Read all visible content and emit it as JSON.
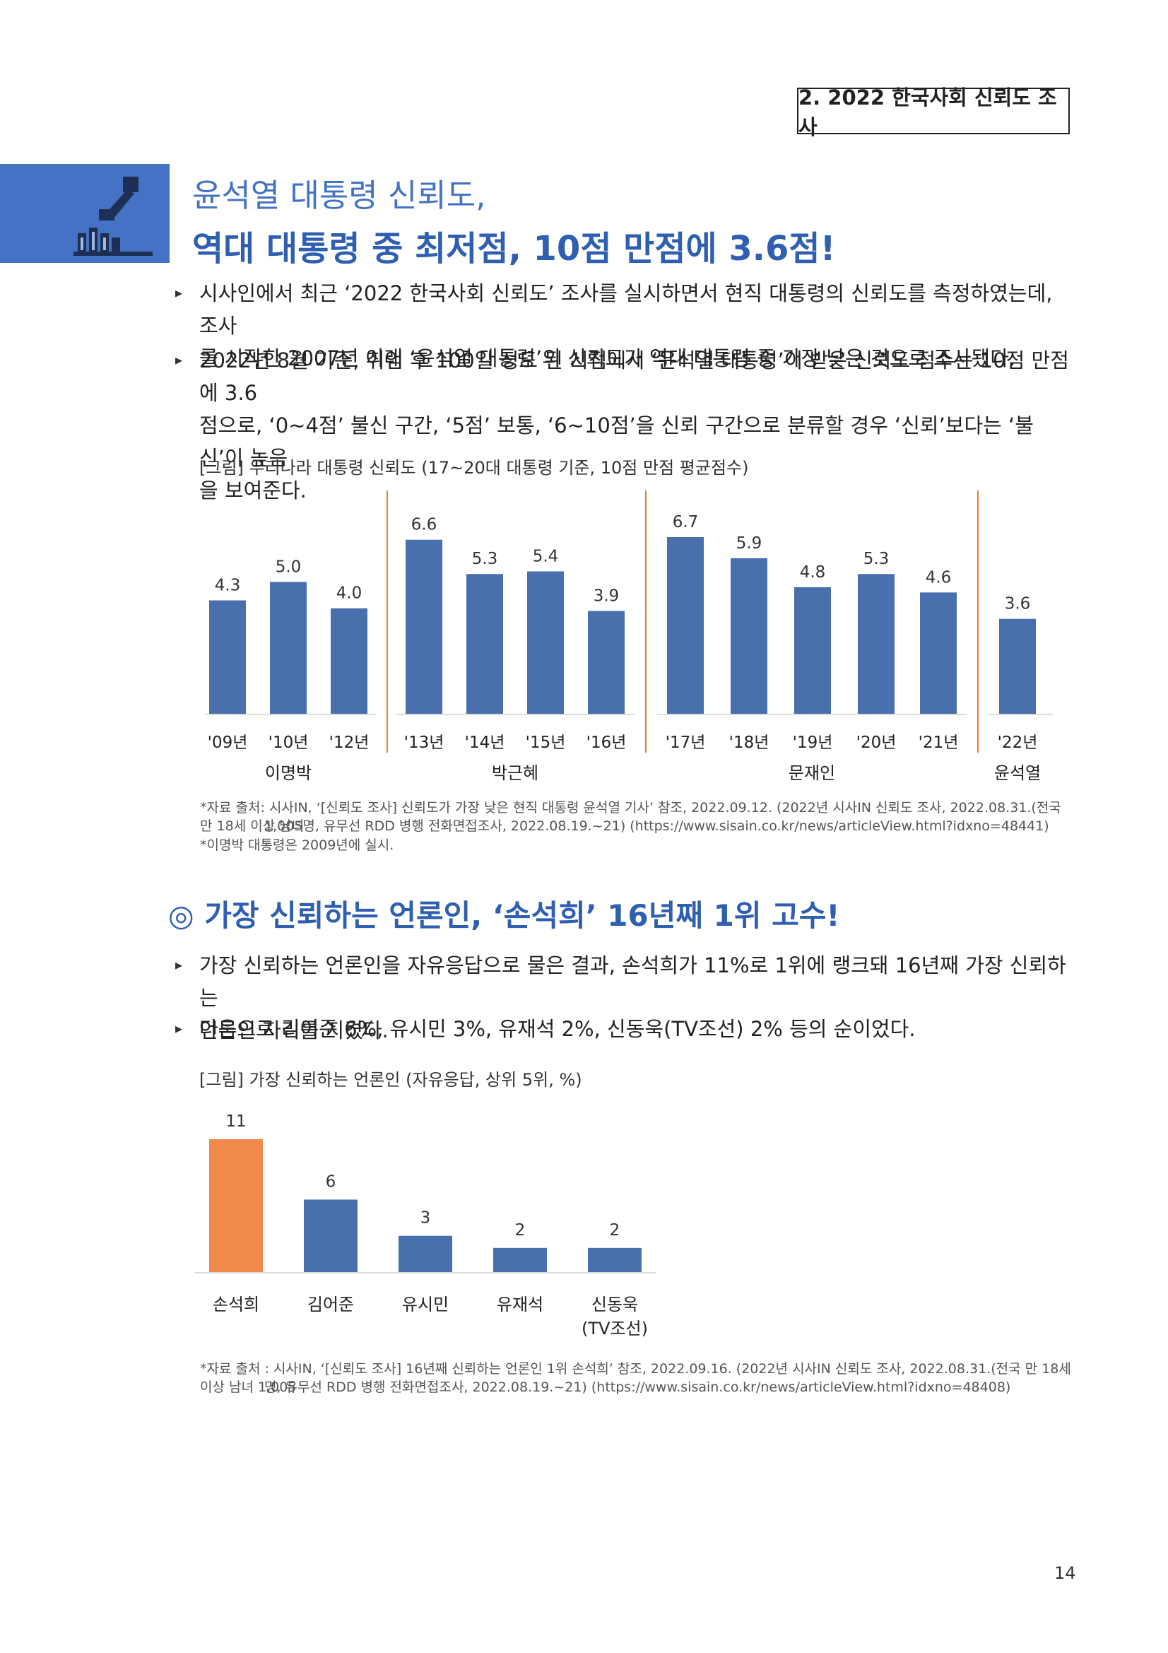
{
  "header": {
    "section_tag": "2. 2022 한국사회 신뢰도 조사"
  },
  "title": {
    "line1": "윤석열 대통령 신뢰도,",
    "line2": "역대 대통령 중 최저점, 10점 만점에 3.6점!"
  },
  "bullets1": [
    {
      "line1": "시사인에서 최근 ‘2022 한국사회 신뢰도’ 조사를 실시하면서 현직 대통령의 신뢰도를 측정하였는데, 조사",
      "line2": "를 시작한 2007년 이래 ‘윤석열 대통령’의 신뢰도가 역대 대통령 중 가장 낮은 것으로 조사됐다."
    },
    {
      "line1": "2022년 8월 기준, 취임 후 100일 정도 된 시점에서 ‘윤석열 대통령’이 받은 신뢰도 점수는 10점 만점에 3.6",
      "line2": "점으로, ‘0~4점’ 불신 구간, ‘5점’ 보통, ‘6~10점’을 신뢰 구간으로 분류할 경우 ‘신뢰’보다는 ‘불신’이 높음",
      "line3": "을 보여준다."
    }
  ],
  "fig1_caption": "[그림] 우리나라 대통령 신뢰도 (17~20대 대통령 기준, 10점 만점 평균점수)",
  "chart_data": [
    {
      "type": "bar",
      "title": "[그림] 우리나라 대통령 신뢰도 (17~20대 대통령 기준, 10점 만점 평균점수)",
      "categories": [
        "'09년",
        "'10년",
        "'12년",
        "'13년",
        "'14년",
        "'15년",
        "'16년",
        "'17년",
        "'18년",
        "'19년",
        "'20년",
        "'21년",
        "'22년"
      ],
      "values": [
        4.3,
        5.0,
        4.0,
        6.6,
        5.3,
        5.4,
        3.9,
        6.7,
        5.9,
        4.8,
        5.3,
        4.6,
        3.6
      ],
      "value_labels": [
        "4.3",
        "5.0",
        "4.0",
        "6.6",
        "5.3",
        "5.4",
        "3.9",
        "6.7",
        "5.9",
        "4.8",
        "5.3",
        "4.6",
        "3.6"
      ],
      "groups": [
        {
          "name": "이명박",
          "count": 3
        },
        {
          "name": "박근혜",
          "count": 4
        },
        {
          "name": "문재인",
          "count": 5
        },
        {
          "name": "윤석열",
          "count": 1
        }
      ],
      "ylim": [
        0,
        8
      ],
      "grid": false,
      "bar_color": "#4a6fad",
      "separator_color": "#ed7d31"
    },
    {
      "type": "bar",
      "title": "[그림] 가장 신뢰하는 언론인 (자유응답, 상위 5위, %)",
      "categories": [
        "손석희",
        "김어준",
        "유시민",
        "유재석",
        "신동욱"
      ],
      "category_sublabels": [
        "",
        "",
        "",
        "",
        "(TV조선)"
      ],
      "values": [
        11,
        6,
        3,
        2,
        2
      ],
      "value_labels": [
        "11",
        "6",
        "3",
        "2",
        "2"
      ],
      "ylim": [
        0,
        12
      ],
      "grid": false,
      "bar_color": "#4a6fad",
      "highlight_color": "#f0894a"
    }
  ],
  "source1": {
    "line1": "*자료 출처: 시사IN, ‘[신뢰도 조사] 신뢰도가 가장 낮은 현직 대통령 윤석열 기사’ 참조, 2022.09.12. (2022년 시사IN 신뢰도 조사, 2022.08.31.(전국 만 18세 이상 남녀",
    "line2": "1,005명, 유무선 RDD 병행 전화면접조사, 2022.08.19.~21) (https://www.sisain.co.kr/news/articleView.html?idxno=48441)",
    "note": "*이명박 대통령은 2009년에 실시."
  },
  "section2": {
    "heading": "◎ 가장 신뢰하는 언론인, ‘손석희’ 16년째 1위 고수!"
  },
  "bullets2": [
    {
      "line1": "가장 신뢰하는 언론인을 자유응답으로 물은 결과, 손석희가 11%로 1위에 랭크돼 16년째 가장 신뢰하는",
      "line2": "언론인 자리를 지켰다."
    },
    {
      "line1": "다음으로 김어준 6%, 유시민 3%, 유재석 2%, 신동욱(TV조선) 2% 등의 순이었다."
    }
  ],
  "fig2_caption": "[그림] 가장 신뢰하는 언론인 (자유응답, 상위 5위, %)",
  "source2": {
    "line1": "*자료 출처 : 시사IN, ‘[신뢰도 조사] 16년째 신뢰하는 언론인 1위 손석희’ 참조, 2022.09.16. (2022년 시사IN 신뢰도 조사, 2022.08.31.(전국 만 18세 이상 남녀 1,005",
    "line2": "명, 유무선 RDD 병행 전화면접조사, 2022.08.19.~21) (https://www.sisain.co.kr/news/articleView.html?idxno=48408)"
  },
  "page": {
    "number": "14"
  },
  "icons": {
    "title_icon": "survey-person-icon",
    "bullet": "triangle-bullet-icon"
  }
}
